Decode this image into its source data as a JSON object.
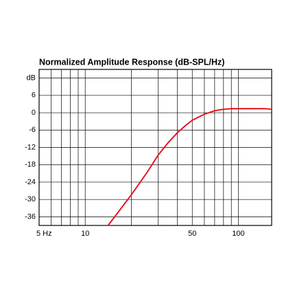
{
  "chart_data": {
    "type": "line",
    "title": "Normalized Amplitude Response (dB-SPL/Hz)",
    "x": [
      14.1,
      16,
      20,
      25,
      30,
      35,
      40,
      45,
      50,
      60,
      70,
      80,
      90,
      100,
      120,
      150,
      165
    ],
    "series": [
      {
        "name": null,
        "color": "#e8141c",
        "values": [
          -39,
          -35.2,
          -28.4,
          -21.1,
          -14.6,
          -10.2,
          -6.9,
          -4.5,
          -2.6,
          -0.5,
          0.7,
          1.2,
          1.4,
          1.4,
          1.4,
          1.4,
          1.2
        ]
      }
    ],
    "xscale": "log",
    "xlim": [
      5,
      165
    ],
    "xticks": [
      {
        "value": 5,
        "label": "5 Hz"
      },
      10,
      50,
      100
    ],
    "xminor": [
      6,
      7,
      8,
      9,
      20,
      30,
      40,
      60,
      70,
      80,
      90
    ],
    "ylim": [
      -39,
      15
    ],
    "yticks": [
      -36,
      -30,
      -24,
      -18,
      -12,
      -6,
      0,
      6,
      {
        "value": 12,
        "label": "dB"
      }
    ],
    "grid": true
  }
}
